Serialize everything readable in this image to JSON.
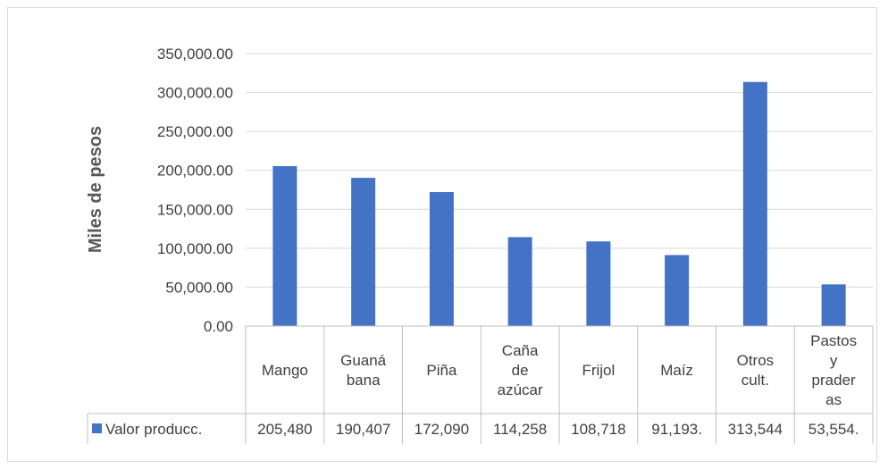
{
  "chart_data": {
    "type": "bar",
    "title": "",
    "xlabel": "",
    "ylabel": "Miles de pesos",
    "ylim": [
      0,
      350000
    ],
    "yticks": [
      "0.00",
      "50,000.00",
      "100,000.00",
      "150,000.00",
      "200,000.00",
      "250,000.00",
      "300,000.00",
      "350,000.00"
    ],
    "categories": [
      [
        "Mango"
      ],
      [
        "Guaná",
        "bana"
      ],
      [
        "Piña"
      ],
      [
        "Caña",
        "de",
        "azúcar"
      ],
      [
        "Frijol"
      ],
      [
        "Maíz"
      ],
      [
        "Otros",
        "cult."
      ],
      [
        "Pastos",
        "y",
        "prader",
        "as"
      ]
    ],
    "series": [
      {
        "name": "Valor producc.",
        "color": "#4472c4",
        "values": [
          205480,
          190407,
          172090,
          114258,
          108718,
          91193,
          313544,
          53554
        ],
        "table_labels": [
          "205,480",
          "190,407",
          "172,090",
          "114,258",
          "108,718",
          "91,193.",
          "313,544",
          "53,554."
        ]
      }
    ],
    "grid": true,
    "legend": "data-table"
  }
}
